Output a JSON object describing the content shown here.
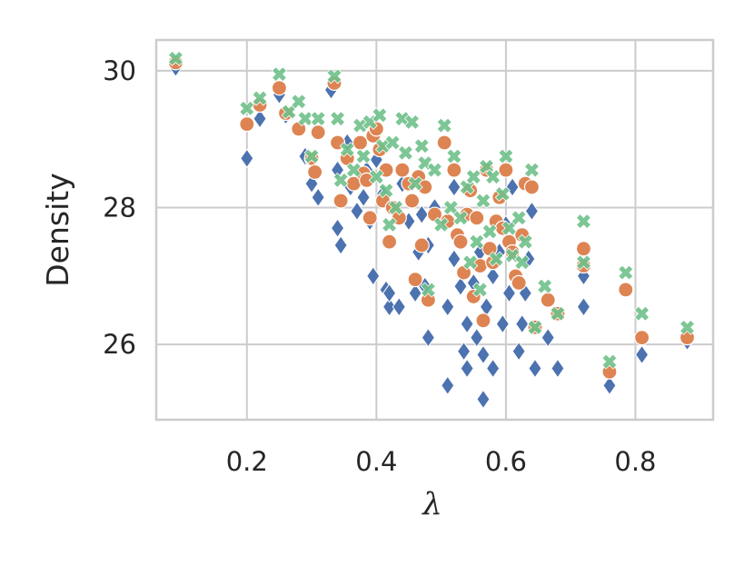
{
  "chart_data": {
    "type": "scatter",
    "title": "",
    "xlabel": "λ",
    "ylabel": "Density",
    "xlim": [
      0.06,
      0.92
    ],
    "ylim": [
      24.9,
      30.45
    ],
    "xticks": [
      0.2,
      0.4,
      0.6,
      0.8
    ],
    "xtick_labels": [
      "0.2",
      "0.4",
      "0.6",
      "0.8"
    ],
    "yticks": [
      26,
      28,
      30
    ],
    "ytick_labels": [
      "26",
      "28",
      "30"
    ],
    "grid": true,
    "legend": "none",
    "series": [
      {
        "marker": "diamond",
        "color": "#4c72b0",
        "points": [
          [
            0.09,
            30.05
          ],
          [
            0.2,
            28.72
          ],
          [
            0.22,
            29.3
          ],
          [
            0.25,
            29.65
          ],
          [
            0.26,
            29.35
          ],
          [
            0.29,
            28.75
          ],
          [
            0.3,
            28.35
          ],
          [
            0.31,
            28.15
          ],
          [
            0.33,
            29.72
          ],
          [
            0.34,
            28.55
          ],
          [
            0.34,
            27.7
          ],
          [
            0.345,
            27.45
          ],
          [
            0.355,
            28.95
          ],
          [
            0.36,
            28.3
          ],
          [
            0.37,
            27.95
          ],
          [
            0.38,
            28.15
          ],
          [
            0.385,
            28.55
          ],
          [
            0.39,
            27.8
          ],
          [
            0.395,
            27.0
          ],
          [
            0.4,
            28.7
          ],
          [
            0.41,
            28.2
          ],
          [
            0.415,
            26.8
          ],
          [
            0.42,
            26.55
          ],
          [
            0.42,
            26.75
          ],
          [
            0.435,
            26.55
          ],
          [
            0.44,
            28.35
          ],
          [
            0.45,
            27.8
          ],
          [
            0.46,
            26.75
          ],
          [
            0.465,
            27.35
          ],
          [
            0.47,
            27.9
          ],
          [
            0.475,
            26.85
          ],
          [
            0.48,
            27.45
          ],
          [
            0.48,
            26.1
          ],
          [
            0.49,
            28.0
          ],
          [
            0.51,
            25.4
          ],
          [
            0.51,
            26.55
          ],
          [
            0.52,
            28.3
          ],
          [
            0.52,
            27.25
          ],
          [
            0.53,
            26.85
          ],
          [
            0.535,
            25.9
          ],
          [
            0.54,
            26.3
          ],
          [
            0.54,
            25.65
          ],
          [
            0.55,
            26.9
          ],
          [
            0.555,
            26.1
          ],
          [
            0.56,
            27.35
          ],
          [
            0.565,
            25.2
          ],
          [
            0.565,
            25.85
          ],
          [
            0.57,
            26.55
          ],
          [
            0.58,
            27.0
          ],
          [
            0.58,
            25.65
          ],
          [
            0.59,
            27.35
          ],
          [
            0.595,
            26.3
          ],
          [
            0.6,
            27.75
          ],
          [
            0.605,
            26.75
          ],
          [
            0.61,
            28.3
          ],
          [
            0.615,
            26.95
          ],
          [
            0.62,
            25.9
          ],
          [
            0.625,
            26.3
          ],
          [
            0.63,
            26.75
          ],
          [
            0.635,
            27.25
          ],
          [
            0.64,
            27.95
          ],
          [
            0.645,
            25.65
          ],
          [
            0.665,
            26.1
          ],
          [
            0.68,
            25.65
          ],
          [
            0.72,
            27.0
          ],
          [
            0.72,
            26.55
          ],
          [
            0.76,
            25.4
          ],
          [
            0.81,
            25.85
          ],
          [
            0.88,
            26.05
          ]
        ]
      },
      {
        "marker": "circle",
        "color": "#dd8452",
        "points": [
          [
            0.09,
            30.12
          ],
          [
            0.2,
            29.22
          ],
          [
            0.22,
            29.5
          ],
          [
            0.25,
            29.75
          ],
          [
            0.26,
            29.38
          ],
          [
            0.28,
            29.15
          ],
          [
            0.3,
            28.72
          ],
          [
            0.305,
            28.52
          ],
          [
            0.31,
            29.1
          ],
          [
            0.335,
            29.82
          ],
          [
            0.34,
            28.95
          ],
          [
            0.345,
            28.1
          ],
          [
            0.355,
            28.72
          ],
          [
            0.365,
            28.35
          ],
          [
            0.375,
            28.95
          ],
          [
            0.38,
            28.5
          ],
          [
            0.385,
            28.4
          ],
          [
            0.39,
            27.85
          ],
          [
            0.395,
            29.05
          ],
          [
            0.4,
            29.15
          ],
          [
            0.405,
            28.85
          ],
          [
            0.41,
            28.1
          ],
          [
            0.415,
            28.55
          ],
          [
            0.42,
            27.5
          ],
          [
            0.425,
            28.0
          ],
          [
            0.435,
            27.85
          ],
          [
            0.44,
            28.55
          ],
          [
            0.45,
            28.35
          ],
          [
            0.455,
            28.1
          ],
          [
            0.46,
            26.95
          ],
          [
            0.465,
            28.45
          ],
          [
            0.47,
            27.45
          ],
          [
            0.475,
            28.3
          ],
          [
            0.48,
            26.65
          ],
          [
            0.49,
            27.9
          ],
          [
            0.505,
            28.95
          ],
          [
            0.51,
            27.8
          ],
          [
            0.52,
            28.55
          ],
          [
            0.525,
            27.6
          ],
          [
            0.53,
            27.5
          ],
          [
            0.535,
            27.05
          ],
          [
            0.54,
            27.9
          ],
          [
            0.545,
            28.25
          ],
          [
            0.55,
            26.7
          ],
          [
            0.555,
            27.85
          ],
          [
            0.56,
            27.15
          ],
          [
            0.565,
            26.35
          ],
          [
            0.57,
            28.55
          ],
          [
            0.575,
            27.4
          ],
          [
            0.58,
            27.2
          ],
          [
            0.585,
            27.8
          ],
          [
            0.59,
            28.15
          ],
          [
            0.595,
            27.7
          ],
          [
            0.6,
            28.55
          ],
          [
            0.605,
            27.5
          ],
          [
            0.61,
            27.35
          ],
          [
            0.615,
            27.0
          ],
          [
            0.62,
            26.9
          ],
          [
            0.625,
            27.6
          ],
          [
            0.63,
            28.35
          ],
          [
            0.64,
            28.3
          ],
          [
            0.645,
            26.25
          ],
          [
            0.665,
            26.65
          ],
          [
            0.68,
            26.45
          ],
          [
            0.72,
            27.4
          ],
          [
            0.72,
            27.15
          ],
          [
            0.76,
            25.6
          ],
          [
            0.785,
            26.8
          ],
          [
            0.81,
            26.1
          ],
          [
            0.88,
            26.1
          ]
        ]
      },
      {
        "marker": "x",
        "color": "#6fc08a",
        "points": [
          [
            0.09,
            30.18
          ],
          [
            0.2,
            29.45
          ],
          [
            0.22,
            29.6
          ],
          [
            0.25,
            29.95
          ],
          [
            0.265,
            29.4
          ],
          [
            0.28,
            29.55
          ],
          [
            0.29,
            29.3
          ],
          [
            0.3,
            28.75
          ],
          [
            0.31,
            29.3
          ],
          [
            0.335,
            29.92
          ],
          [
            0.34,
            29.3
          ],
          [
            0.345,
            28.4
          ],
          [
            0.355,
            28.85
          ],
          [
            0.365,
            28.55
          ],
          [
            0.375,
            29.2
          ],
          [
            0.38,
            28.75
          ],
          [
            0.39,
            29.25
          ],
          [
            0.4,
            28.45
          ],
          [
            0.405,
            29.35
          ],
          [
            0.41,
            28.9
          ],
          [
            0.415,
            28.25
          ],
          [
            0.42,
            27.75
          ],
          [
            0.425,
            28.95
          ],
          [
            0.43,
            28.0
          ],
          [
            0.44,
            29.3
          ],
          [
            0.445,
            28.8
          ],
          [
            0.455,
            29.25
          ],
          [
            0.46,
            28.35
          ],
          [
            0.47,
            28.9
          ],
          [
            0.475,
            28.65
          ],
          [
            0.48,
            26.8
          ],
          [
            0.49,
            28.55
          ],
          [
            0.5,
            27.75
          ],
          [
            0.505,
            29.2
          ],
          [
            0.515,
            28.0
          ],
          [
            0.52,
            28.75
          ],
          [
            0.53,
            27.85
          ],
          [
            0.54,
            28.3
          ],
          [
            0.545,
            27.2
          ],
          [
            0.55,
            28.45
          ],
          [
            0.555,
            27.5
          ],
          [
            0.56,
            26.8
          ],
          [
            0.565,
            28.1
          ],
          [
            0.57,
            28.6
          ],
          [
            0.575,
            27.65
          ],
          [
            0.58,
            28.45
          ],
          [
            0.585,
            27.25
          ],
          [
            0.595,
            28.2
          ],
          [
            0.6,
            28.75
          ],
          [
            0.605,
            27.7
          ],
          [
            0.61,
            27.3
          ],
          [
            0.62,
            27.85
          ],
          [
            0.625,
            27.2
          ],
          [
            0.63,
            27.5
          ],
          [
            0.64,
            28.55
          ],
          [
            0.645,
            26.25
          ],
          [
            0.66,
            26.85
          ],
          [
            0.68,
            26.45
          ],
          [
            0.72,
            27.8
          ],
          [
            0.72,
            27.2
          ],
          [
            0.76,
            25.75
          ],
          [
            0.785,
            27.05
          ],
          [
            0.81,
            26.45
          ],
          [
            0.88,
            26.25
          ]
        ]
      }
    ]
  }
}
